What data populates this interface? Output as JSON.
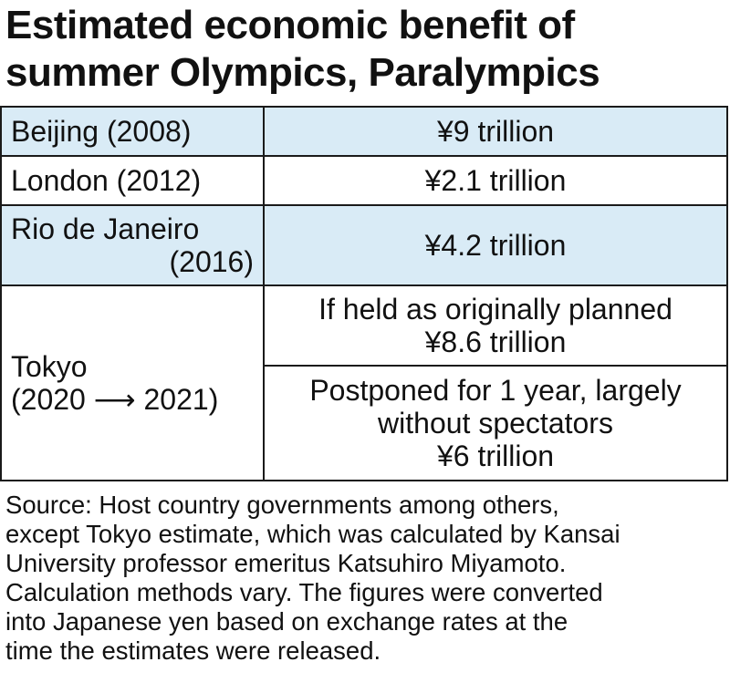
{
  "title": {
    "line1": "Estimated economic benefit of",
    "line2": "summer Olympics, Paralympics"
  },
  "chart_data": {
    "type": "table",
    "rows": [
      {
        "city": "Beijing (2008)",
        "value": "¥9 trillion",
        "shaded": true
      },
      {
        "city": "London (2012)",
        "value": "¥2.1 trillion",
        "shaded": false
      },
      {
        "city_lines": [
          "Rio de Janeiro",
          "(2016)"
        ],
        "value": "¥4.2 trillion",
        "shaded": true
      },
      {
        "city_lines": [
          "Tokyo",
          "(2020 ⟶ 2021)"
        ],
        "scenarios": [
          {
            "label_lines": [
              "If held as originally planned"
            ],
            "value": "¥8.6 trillion"
          },
          {
            "label_lines": [
              "Postponed for 1 year, largely",
              "without spectators"
            ],
            "value": "¥6 trillion"
          }
        ],
        "shaded": false
      }
    ]
  },
  "source_lines": [
    "Source: Host country governments among others,",
    "except Tokyo estimate, which was calculated by Kansai",
    "University professor emeritus Katsuhiro Miyamoto.",
    "Calculation methods vary. The figures were converted",
    "into Japanese yen based on exchange rates at the",
    "time the estimates were released."
  ],
  "colors": {
    "shaded_row": "#d9ebf6",
    "border": "#1a1a1a",
    "text": "#111111"
  }
}
